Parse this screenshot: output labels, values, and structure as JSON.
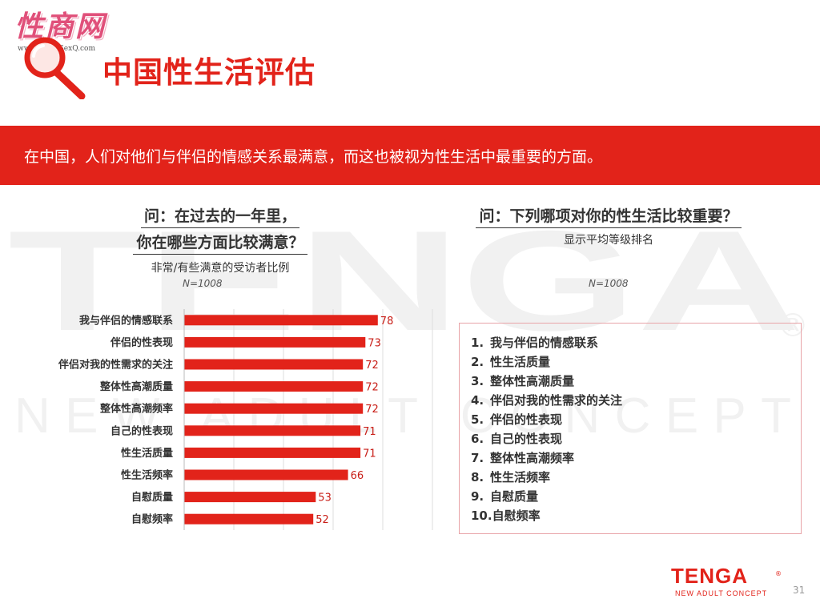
{
  "watermark": {
    "logo_text": "TENGA",
    "tagline": "NEW ADULT CONCEPT",
    "reg_mark": "®"
  },
  "site_logo": {
    "text": "性商网",
    "url": "www.ChinaSexQ.com"
  },
  "header": {
    "title": "中国性生活评估"
  },
  "banner": {
    "text": "在中国，人们对他们与伴侣的情感关系最满意，而这也被视为性生活中最重要的方面。"
  },
  "left_panel": {
    "question_line1": "问：在过去的一年里，",
    "question_line2": "你在哪些方面比较满意？",
    "subtitle": "非常/有些满意的受访者比例",
    "sample_size": "N=1008"
  },
  "right_panel": {
    "question": "问：下列哪项对你的性生活比较重要？",
    "subtitle": "显示平均等级排名",
    "sample_size": "N=1008",
    "ranking": [
      {
        "num": "1.",
        "label": "我与伴侣的情感联系"
      },
      {
        "num": "2.",
        "label": "性生活质量"
      },
      {
        "num": "3.",
        "label": "整体性高潮质量"
      },
      {
        "num": "4.",
        "label": "伴侣对我的性需求的关注"
      },
      {
        "num": "5.",
        "label": "伴侣的性表现"
      },
      {
        "num": "6.",
        "label": "自己的性表现"
      },
      {
        "num": "7.",
        "label": "整体性高潮频率"
      },
      {
        "num": "8.",
        "label": "性生活频率"
      },
      {
        "num": "9.",
        "label": "自慰质量"
      },
      {
        "num": "10.",
        "label": "自慰频率"
      }
    ]
  },
  "chart_data": {
    "type": "bar",
    "orientation": "horizontal",
    "categories": [
      "我与伴侣的情感联系",
      "伴侣的性表现",
      "伴侣对我的性需求的关注",
      "整体性高潮质量",
      "整体性高潮频率",
      "自己的性表现",
      "性生活质量",
      "性生活频率",
      "自慰质量",
      "自慰频率"
    ],
    "values": [
      78,
      73,
      72,
      72,
      72,
      71,
      71,
      66,
      53,
      52
    ],
    "xlim": [
      0,
      100
    ],
    "grid": true,
    "bar_color": "#e2231a",
    "data_labels": true
  },
  "footer": {
    "brand": "TENGA",
    "brand_reg": "®",
    "tagline": "NEW ADULT CONCEPT",
    "page_number": "31"
  },
  "colors": {
    "accent": "#e2231a",
    "logo_pink": "#e0507a"
  }
}
